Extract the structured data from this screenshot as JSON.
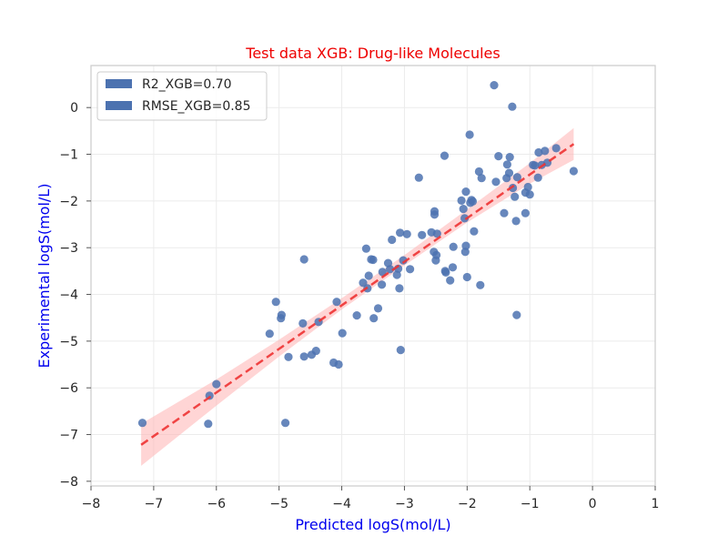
{
  "chart_data": {
    "type": "scatter",
    "title": "Test data XGB: Drug-like Molecules",
    "xlabel": "Predicted logS(mol/L)",
    "ylabel": "Experimental logS(mol/L)",
    "xlim": [
      -8,
      1
    ],
    "ylim": [
      -8.1,
      0.9
    ],
    "x_ticks": [
      -8,
      -7,
      -6,
      -5,
      -4,
      -3,
      -2,
      -1,
      0,
      1
    ],
    "y_ticks": [
      -8,
      -7,
      -6,
      -5,
      -4,
      -3,
      -2,
      -1,
      0
    ],
    "grid": true,
    "legend": {
      "placement": "top-left",
      "entries": [
        "R2_XGB=0.70",
        "RMSE_XGB=0.85"
      ]
    },
    "colors": {
      "points": "#4c72b0",
      "fit_line": "#ee3333",
      "band": "#ffb3b3",
      "title": "#ee0000",
      "axis_label": "#0000ee"
    },
    "fit_line": {
      "x": [
        -7.2,
        -0.3
      ],
      "y": [
        -7.22,
        -0.78
      ]
    },
    "confidence_band": {
      "x": [
        -7.2,
        -6.0,
        -5.0,
        -4.0,
        -3.0,
        -2.0,
        -1.0,
        -0.3
      ],
      "lower": [
        -7.67,
        -6.38,
        -5.33,
        -4.32,
        -3.38,
        -2.46,
        -1.63,
        -1.12
      ],
      "upper": [
        -6.77,
        -5.82,
        -4.97,
        -4.08,
        -3.16,
        -2.18,
        -1.19,
        -0.44
      ]
    },
    "points": [
      {
        "x": -7.18,
        "y": -6.75
      },
      {
        "x": -6.13,
        "y": -6.77
      },
      {
        "x": -6.11,
        "y": -6.17
      },
      {
        "x": -6.0,
        "y": -5.92
      },
      {
        "x": -5.15,
        "y": -4.84
      },
      {
        "x": -5.05,
        "y": -4.16
      },
      {
        "x": -4.97,
        "y": -4.51
      },
      {
        "x": -4.96,
        "y": -4.44
      },
      {
        "x": -4.9,
        "y": -6.75
      },
      {
        "x": -4.85,
        "y": -5.34
      },
      {
        "x": -4.62,
        "y": -4.62
      },
      {
        "x": -4.6,
        "y": -5.33
      },
      {
        "x": -4.6,
        "y": -3.25
      },
      {
        "x": -4.48,
        "y": -5.29
      },
      {
        "x": -4.41,
        "y": -5.21
      },
      {
        "x": -4.37,
        "y": -4.59
      },
      {
        "x": -4.13,
        "y": -5.46
      },
      {
        "x": -4.08,
        "y": -4.16
      },
      {
        "x": -4.05,
        "y": -5.5
      },
      {
        "x": -3.99,
        "y": -4.83
      },
      {
        "x": -3.76,
        "y": -4.45
      },
      {
        "x": -3.66,
        "y": -3.75
      },
      {
        "x": -3.61,
        "y": -3.02
      },
      {
        "x": -3.59,
        "y": -3.87
      },
      {
        "x": -3.57,
        "y": -3.6
      },
      {
        "x": -3.53,
        "y": -3.25
      },
      {
        "x": -3.5,
        "y": -3.26
      },
      {
        "x": -3.49,
        "y": -4.51
      },
      {
        "x": -3.42,
        "y": -4.3
      },
      {
        "x": -3.36,
        "y": -3.79
      },
      {
        "x": -3.35,
        "y": -3.52
      },
      {
        "x": -3.26,
        "y": -3.33
      },
      {
        "x": -3.23,
        "y": -3.46
      },
      {
        "x": -3.2,
        "y": -2.83
      },
      {
        "x": -3.12,
        "y": -3.58
      },
      {
        "x": -3.1,
        "y": -3.45
      },
      {
        "x": -3.08,
        "y": -3.87
      },
      {
        "x": -3.07,
        "y": -2.68
      },
      {
        "x": -3.06,
        "y": -5.19
      },
      {
        "x": -3.02,
        "y": -3.27
      },
      {
        "x": -2.96,
        "y": -2.71
      },
      {
        "x": -2.91,
        "y": -3.46
      },
      {
        "x": -2.77,
        "y": -1.5
      },
      {
        "x": -2.72,
        "y": -2.73
      },
      {
        "x": -2.57,
        "y": -2.67
      },
      {
        "x": -2.53,
        "y": -3.09
      },
      {
        "x": -2.52,
        "y": -2.29
      },
      {
        "x": -2.52,
        "y": -2.22
      },
      {
        "x": -2.5,
        "y": -3.27
      },
      {
        "x": -2.49,
        "y": -3.16
      },
      {
        "x": -2.48,
        "y": -2.7
      },
      {
        "x": -2.36,
        "y": -1.03
      },
      {
        "x": -2.35,
        "y": -3.5
      },
      {
        "x": -2.34,
        "y": -3.53
      },
      {
        "x": -2.27,
        "y": -3.7
      },
      {
        "x": -2.23,
        "y": -3.42
      },
      {
        "x": -2.22,
        "y": -2.98
      },
      {
        "x": -2.09,
        "y": -1.99
      },
      {
        "x": -2.06,
        "y": -2.17
      },
      {
        "x": -2.04,
        "y": -2.37
      },
      {
        "x": -2.03,
        "y": -3.09
      },
      {
        "x": -2.02,
        "y": -2.96
      },
      {
        "x": -2.02,
        "y": -1.8
      },
      {
        "x": -2.0,
        "y": -3.63
      },
      {
        "x": -1.96,
        "y": -0.58
      },
      {
        "x": -1.95,
        "y": -2.04
      },
      {
        "x": -1.93,
        "y": -1.98
      },
      {
        "x": -1.91,
        "y": -2.01
      },
      {
        "x": -1.89,
        "y": -2.65
      },
      {
        "x": -1.81,
        "y": -1.37
      },
      {
        "x": -1.79,
        "y": -3.8
      },
      {
        "x": -1.77,
        "y": -1.51
      },
      {
        "x": -1.57,
        "y": 0.48
      },
      {
        "x": -1.54,
        "y": -1.59
      },
      {
        "x": -1.5,
        "y": -1.04
      },
      {
        "x": -1.41,
        "y": -2.26
      },
      {
        "x": -1.37,
        "y": -1.51
      },
      {
        "x": -1.36,
        "y": -1.22
      },
      {
        "x": -1.33,
        "y": -1.4
      },
      {
        "x": -1.32,
        "y": -1.06
      },
      {
        "x": -1.28,
        "y": 0.02
      },
      {
        "x": -1.27,
        "y": -1.72
      },
      {
        "x": -1.24,
        "y": -1.91
      },
      {
        "x": -1.22,
        "y": -2.43
      },
      {
        "x": -1.21,
        "y": -4.44
      },
      {
        "x": -1.2,
        "y": -1.49
      },
      {
        "x": -1.07,
        "y": -2.26
      },
      {
        "x": -1.07,
        "y": -1.82
      },
      {
        "x": -1.03,
        "y": -1.7
      },
      {
        "x": -1.0,
        "y": -1.86
      },
      {
        "x": -0.95,
        "y": -1.23
      },
      {
        "x": -0.92,
        "y": -1.24
      },
      {
        "x": -0.87,
        "y": -1.5
      },
      {
        "x": -0.86,
        "y": -0.96
      },
      {
        "x": -0.81,
        "y": -1.23
      },
      {
        "x": -0.76,
        "y": -0.93
      },
      {
        "x": -0.72,
        "y": -1.18
      },
      {
        "x": -0.58,
        "y": -0.87
      },
      {
        "x": -0.3,
        "y": -1.36
      }
    ]
  }
}
